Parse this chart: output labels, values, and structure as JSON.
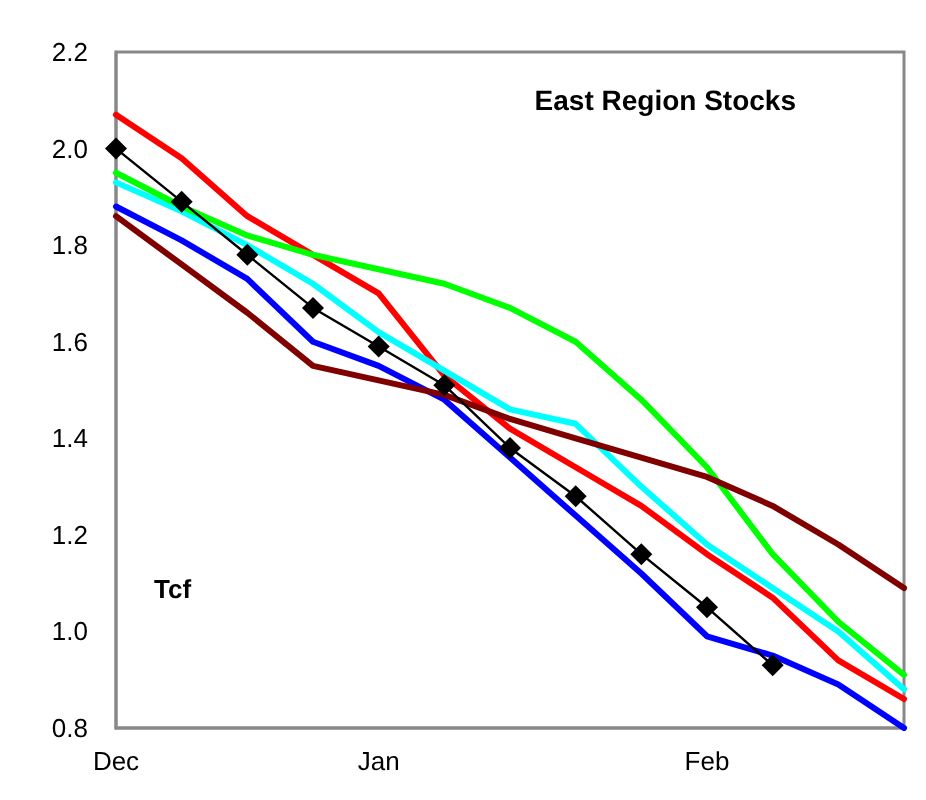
{
  "chart_data": {
    "type": "line",
    "title": "East Region Stocks",
    "ylabel": "Tcf",
    "categories": [
      "Dec",
      null,
      null,
      null,
      "Jan",
      null,
      null,
      null,
      null,
      "Feb",
      null,
      null,
      null
    ],
    "ylim": [
      0.8,
      2.2
    ],
    "yticks": [
      0.8,
      {
        "value": 1.0,
        "label": "1.0"
      },
      1.2,
      1.4,
      1.6,
      1.8,
      {
        "value": 2.0,
        "label": "2.0"
      },
      2.2
    ],
    "grid": false,
    "line_style": "solid",
    "series": [
      {
        "color": "#ff0000",
        "marker": "none",
        "values": [
          2.07,
          1.98,
          1.86,
          1.78,
          1.7,
          1.53,
          1.42,
          1.34,
          1.26,
          1.16,
          1.07,
          0.94,
          0.86
        ]
      },
      {
        "color": "#0000ff",
        "marker": "none",
        "values": [
          1.88,
          1.81,
          1.73,
          1.6,
          1.55,
          1.48,
          1.36,
          1.24,
          1.12,
          0.99,
          0.95,
          0.89,
          0.8
        ]
      },
      {
        "color": "#00ffff",
        "marker": "none",
        "values": [
          1.93,
          1.87,
          1.8,
          1.72,
          1.62,
          1.54,
          1.46,
          1.43,
          1.3,
          1.18,
          1.09,
          1.0,
          0.88
        ]
      },
      {
        "color": "#00ff00",
        "marker": "none",
        "values": [
          1.95,
          1.88,
          1.82,
          1.78,
          1.75,
          1.72,
          1.67,
          1.6,
          1.48,
          1.34,
          1.16,
          1.02,
          0.91
        ]
      },
      {
        "color": "#800000",
        "marker": "none",
        "values": [
          1.86,
          1.76,
          1.66,
          1.55,
          1.52,
          1.49,
          1.44,
          1.4,
          1.36,
          1.32,
          1.26,
          1.18,
          1.09
        ]
      },
      {
        "color": "#000000",
        "marker": "diamond",
        "values": [
          2.0,
          1.89,
          1.78,
          1.67,
          1.59,
          1.51,
          1.38,
          1.28,
          1.16,
          1.05,
          0.93,
          null,
          null
        ]
      }
    ]
  }
}
